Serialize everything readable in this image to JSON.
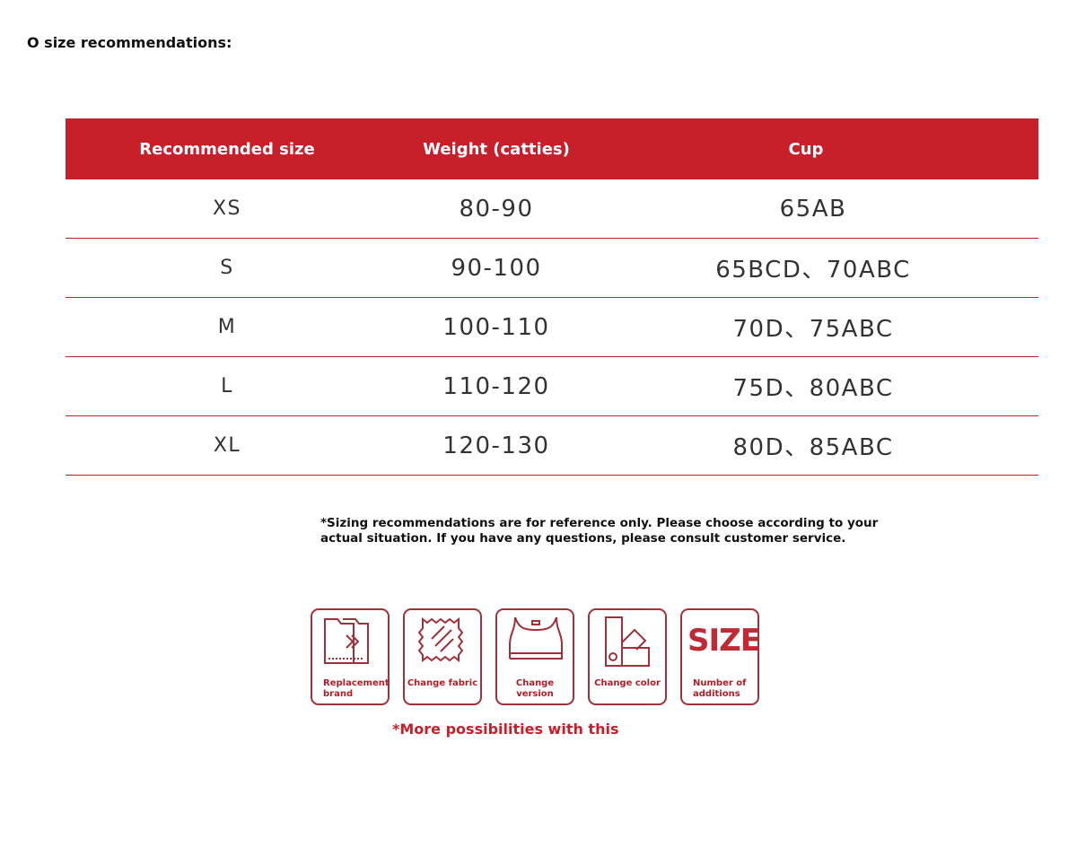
{
  "title": "O size recommendations:",
  "table": {
    "headers": [
      "Recommended size",
      "Weight (catties)",
      "Cup"
    ],
    "rows": [
      [
        "XS",
        "80-90",
        "65AB"
      ],
      [
        "S",
        "90-100",
        "65BCD、70ABC"
      ],
      [
        "M",
        "100-110",
        "70D、75ABC"
      ],
      [
        "L",
        "110-120",
        "75D、80ABC"
      ],
      [
        "XL",
        "120-130",
        "80D、85ABC"
      ]
    ]
  },
  "note": "*Sizing recommendations are for reference only. Please choose according to your actual situation. If you have any questions, please consult customer service.",
  "features": [
    {
      "icon": "folder-arrow-icon",
      "label": "Replacement brand"
    },
    {
      "icon": "fabric-icon",
      "label": "Change fabric"
    },
    {
      "icon": "sports-bra-icon",
      "label": "Change version"
    },
    {
      "icon": "color-swatch-icon",
      "label": "Change color"
    },
    {
      "icon": "size-icon",
      "label": "Number of additions",
      "glyph": "SIZE"
    }
  ],
  "more": "*More possibilities with this",
  "colors": {
    "accent": "#c8202a",
    "icon_border": "#a0303a"
  }
}
